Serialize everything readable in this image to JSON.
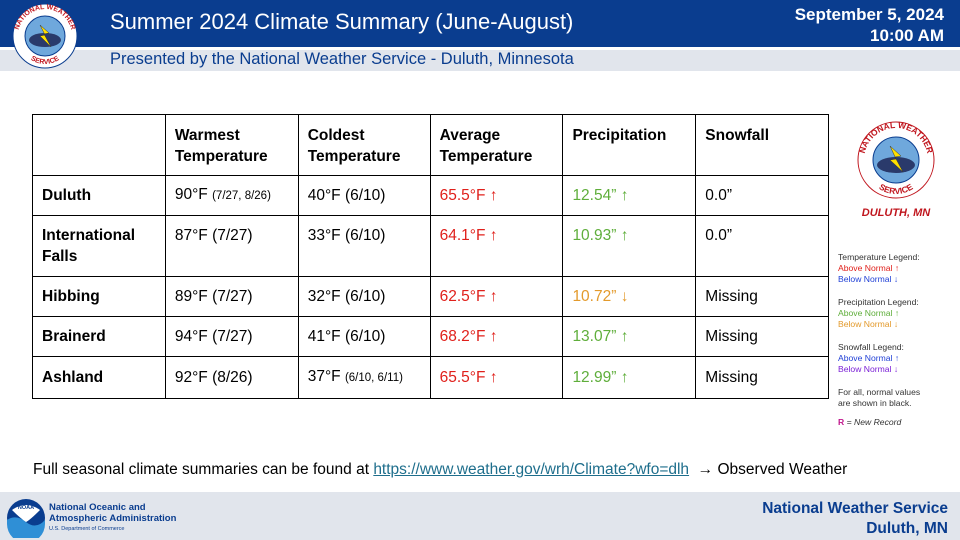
{
  "header": {
    "title": "Summer 2024 Climate Summary (June-August)",
    "subtitle": "Presented by the National Weather Service - Duluth, Minnesota",
    "date_line1": "September 5, 2024",
    "date_line2": "10:00 AM",
    "logo_text": "NATIONAL WEATHER SERVICE"
  },
  "table": {
    "headers": [
      "",
      "Warmest Temperature",
      "Coldest Temperature",
      "Average Temperature",
      "Precipitation",
      "Snowfall"
    ],
    "headers_split": [
      [
        "",
        ""
      ],
      [
        "Warmest",
        "Temperature"
      ],
      [
        "Coldest",
        "Temperature"
      ],
      [
        "Average",
        "Temperature"
      ],
      [
        "Precipitation",
        ""
      ],
      [
        "Snowfall",
        ""
      ]
    ],
    "rows": [
      {
        "city": "Duluth",
        "warm": "90°F",
        "warm_date": "(7/27, 8/26)",
        "cold": "40°F",
        "cold_date": "(6/10)",
        "avg": "65.5°F",
        "avg_arrow": "↑",
        "precip": "12.54”",
        "precip_arrow": "↑",
        "snow": "0.0”"
      },
      {
        "city": "International Falls",
        "warm": "87°F",
        "warm_date": "(7/27)",
        "cold": "33°F",
        "cold_date": "(6/10)",
        "avg": "64.1°F",
        "avg_arrow": "↑",
        "precip": "10.93”",
        "precip_arrow": "↑",
        "snow": "0.0”"
      },
      {
        "city": "Hibbing",
        "warm": "89°F",
        "warm_date": "(7/27)",
        "cold": "32°F",
        "cold_date": "(6/10)",
        "avg": "62.5°F",
        "avg_arrow": "↑",
        "precip": "10.72”",
        "precip_arrow": "↓",
        "snow": "Missing"
      },
      {
        "city": "Brainerd",
        "warm": "94°F",
        "warm_date": "(7/27)",
        "cold": "41°F",
        "cold_date": "(6/10)",
        "avg": "68.2°F",
        "avg_arrow": "↑",
        "precip": "13.07”",
        "precip_arrow": "↑",
        "snow": "Missing"
      },
      {
        "city": "Ashland",
        "warm": "92°F",
        "warm_date": "(8/26)",
        "cold": "37°F",
        "cold_date": "(6/10, 6/11)",
        "avg": "65.5°F",
        "avg_arrow": "↑",
        "precip": "12.99”",
        "precip_arrow": "↑",
        "snow": "Missing"
      }
    ]
  },
  "right_logo": {
    "ring_text": "NATIONAL WEATHER SERVICE",
    "caption": "DULUTH, MN"
  },
  "legend": {
    "temp_title": "Temperature Legend:",
    "temp_above": "Above Normal ↑",
    "temp_below": "Below Normal ↓",
    "precip_title": "Precipitation Legend:",
    "precip_above": "Above Normal ↑",
    "precip_below": "Below Normal ↓",
    "snow_title": "Snowfall Legend:",
    "snow_above": "Above Normal ↑",
    "snow_below": "Below Normal ↓",
    "normal_note_1": "For all, normal values",
    "normal_note_2": "are shown in black.",
    "record_r": "R",
    "record_text": " = New Record"
  },
  "footnote": {
    "prefix": "Full seasonal climate summaries can be found at ",
    "link": "https://www.weather.gov/wrh/Climate?wfo=dlh",
    "suffix": "  → Observed Weather"
  },
  "footer": {
    "noaa_line1": "National Oceanic and",
    "noaa_line2": "Atmospheric Administration",
    "noaa_dept": "U.S. Department of Commerce",
    "noaa_logo_text": "NOAA",
    "right_line1": "National Weather Service",
    "right_line2": "Duluth, MN"
  },
  "colors": {
    "brand_blue": "#0a3d8f",
    "above_normal_temp": "#e0201b",
    "above_normal_precip": "#5fae3b",
    "below_normal_precip": "#e39a2c",
    "link": "#1e6e8c"
  }
}
